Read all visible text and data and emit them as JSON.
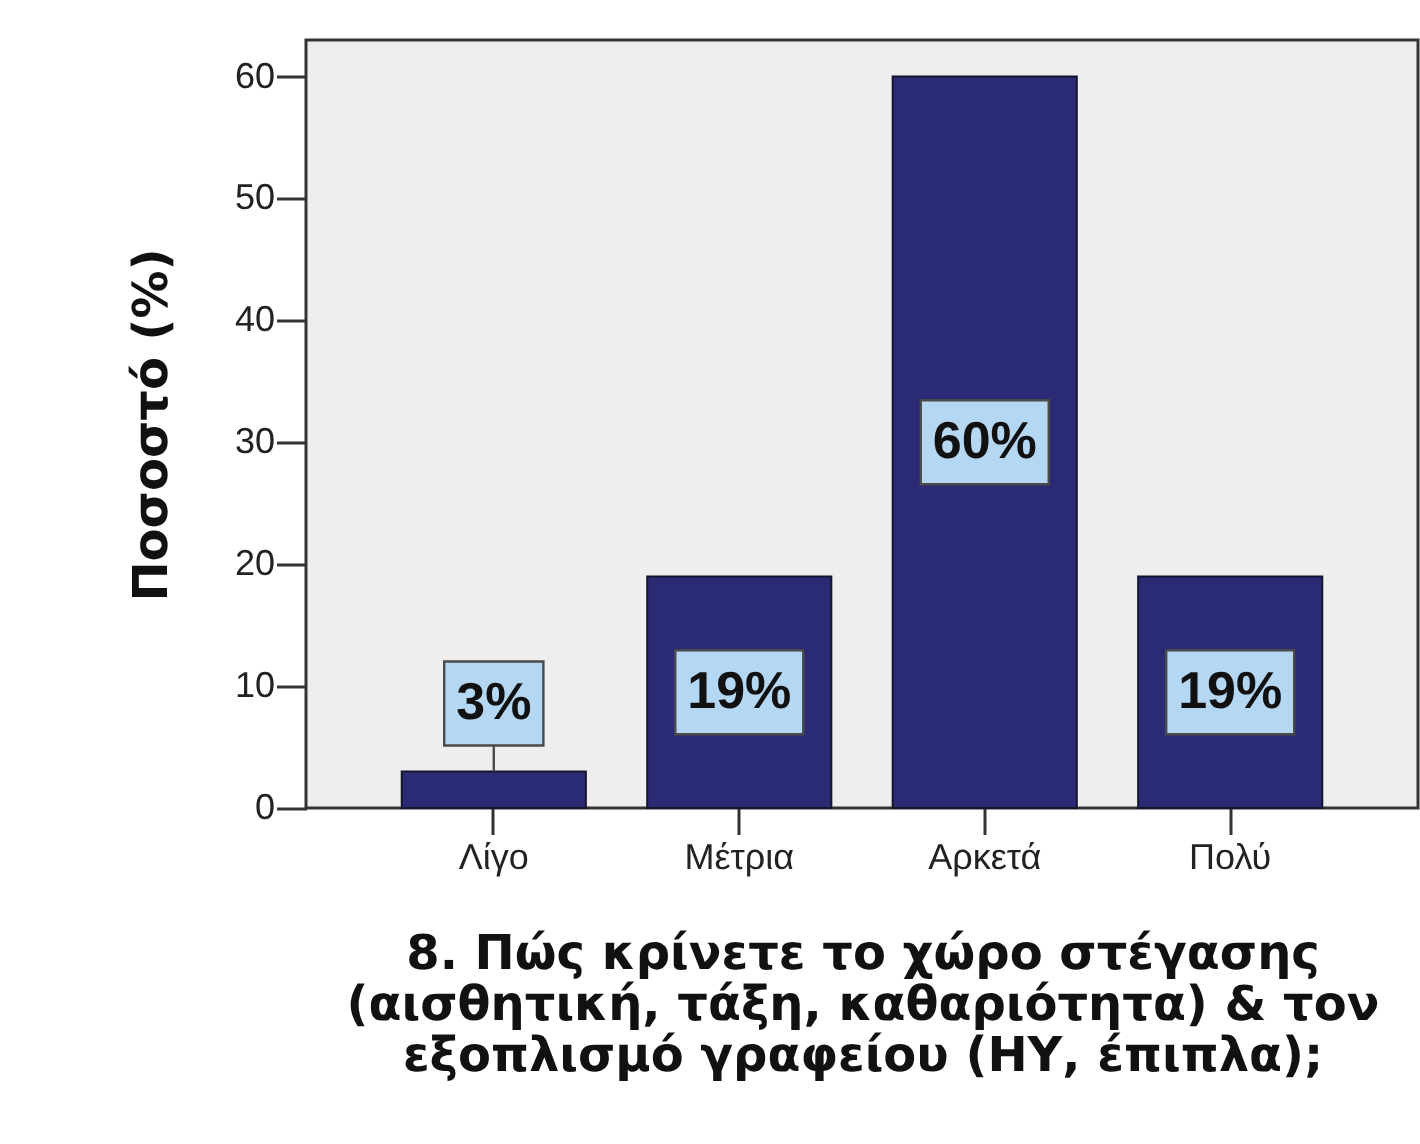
{
  "chart_data": {
    "type": "bar",
    "categories": [
      "Λίγο",
      "Μέτρια",
      "Αρκετά",
      "Πολύ"
    ],
    "values": [
      3,
      19,
      60,
      19
    ],
    "color": "#2b2a74",
    "value_labels": [
      "3%",
      "19%",
      "60%",
      "19%"
    ],
    "ylabel": "Ποσοστό (%)",
    "xlabel": "8. Πώς κρίνετε το χώρο στέγασης (αισθητική, τάξη, καθαριότητα) & τον εξοπλισμό γραφείου (ΗΥ, έπιπλα);",
    "ylim": [
      0,
      63
    ],
    "yticks": [
      0,
      10,
      20,
      30,
      40,
      50,
      60
    ]
  }
}
